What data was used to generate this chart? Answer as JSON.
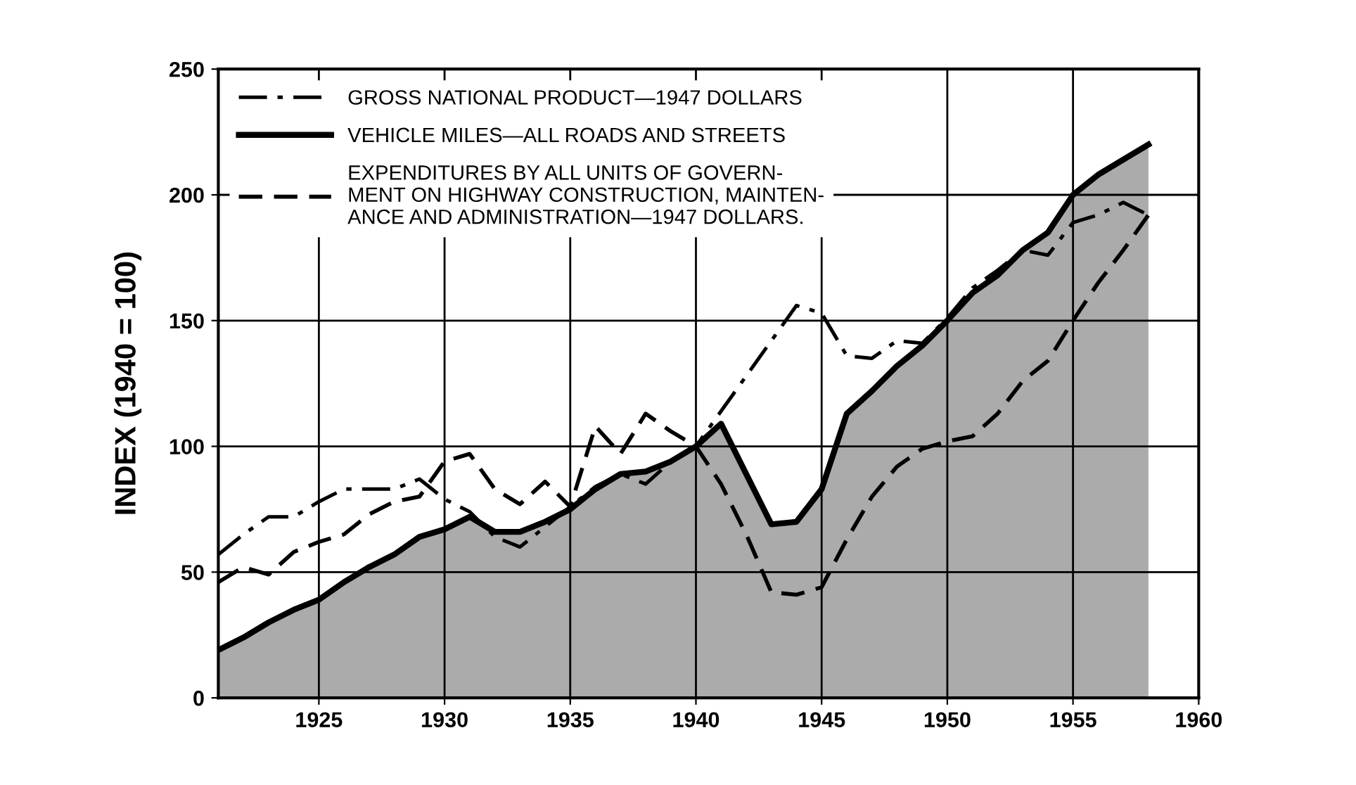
{
  "chart_data": {
    "type": "line",
    "ylabel": "INDEX (1940 = 100)",
    "x": [
      1921,
      1922,
      1923,
      1924,
      1925,
      1926,
      1927,
      1928,
      1929,
      1930,
      1931,
      1932,
      1933,
      1934,
      1935,
      1936,
      1937,
      1938,
      1939,
      1940,
      1941,
      1942,
      1943,
      1944,
      1945,
      1946,
      1947,
      1948,
      1949,
      1950,
      1951,
      1952,
      1953,
      1954,
      1955,
      1956,
      1957,
      1958
    ],
    "series": [
      {
        "name": "GROSS NATIONAL PRODUCT—1947 DOLLARS",
        "color": "#000000",
        "line_style": "dashdot",
        "values": [
          57,
          65,
          72,
          72,
          78,
          83,
          83,
          83,
          87,
          79,
          74,
          64,
          60,
          68,
          76,
          84,
          89,
          85,
          94,
          100,
          114,
          128,
          142,
          156,
          153,
          136,
          135,
          142,
          141,
          151,
          163,
          170,
          178,
          176,
          189,
          192,
          197,
          192
        ]
      },
      {
        "name": "VEHICLE MILES—ALL ROADS AND STREETS",
        "type": "area",
        "color": "#000000",
        "line_style": "solid",
        "values": [
          19,
          24,
          30,
          35,
          39,
          46,
          52,
          57,
          64,
          67,
          72,
          66,
          66,
          70,
          75,
          83,
          89,
          90,
          94,
          100,
          109,
          89,
          69,
          70,
          83,
          113,
          122,
          132,
          140,
          150,
          161,
          168,
          178,
          185,
          200,
          208,
          214,
          220
        ]
      },
      {
        "name": "EXPENDITURES BY ALL UNITS OF GOVERN-\nMENT ON HIGHWAY CONSTRUCTION, MAINTEN-\nANCE AND ADMINISTRATION—1947 DOLLARS.",
        "color": "#000000",
        "line_style": "dashed",
        "values": [
          46,
          52,
          49,
          58,
          62,
          65,
          73,
          78,
          80,
          94,
          97,
          83,
          77,
          86,
          76,
          108,
          97,
          113,
          106,
          100,
          85,
          65,
          42,
          41,
          44,
          63,
          80,
          92,
          99,
          102,
          104,
          113,
          126,
          134,
          150,
          165,
          178,
          192
        ]
      }
    ],
    "xlim": [
      1921,
      1960
    ],
    "xticks": [
      1925,
      1930,
      1935,
      1940,
      1945,
      1950,
      1955,
      1960
    ],
    "ylim": [
      0,
      250
    ],
    "yticks": [
      0,
      50,
      100,
      150,
      200,
      250
    ],
    "grid": true,
    "legend": "top left"
  }
}
